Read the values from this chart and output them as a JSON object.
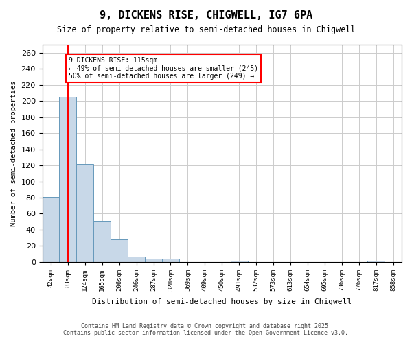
{
  "title": "9, DICKENS RISE, CHIGWELL, IG7 6PA",
  "subtitle": "Size of property relative to semi-detached houses in Chigwell",
  "xlabel": "Distribution of semi-detached houses by size in Chigwell",
  "ylabel": "Number of semi-detached properties",
  "categories": [
    "42sqm",
    "83sqm",
    "124sqm",
    "165sqm",
    "206sqm",
    "246sqm",
    "287sqm",
    "328sqm",
    "369sqm",
    "409sqm",
    "450sqm",
    "491sqm",
    "532sqm",
    "573sqm",
    "613sqm",
    "654sqm",
    "695sqm",
    "736sqm",
    "776sqm",
    "817sqm",
    "858sqm"
  ],
  "values": [
    81,
    205,
    122,
    51,
    28,
    7,
    4,
    4,
    0,
    0,
    0,
    2,
    0,
    0,
    0,
    0,
    0,
    0,
    0,
    2,
    0
  ],
  "bar_color": "#c8d8e8",
  "bar_edge_color": "#6699bb",
  "red_line_x": 1.0,
  "annotation_title": "9 DICKENS RISE: 115sqm",
  "annotation_line1": "← 49% of semi-detached houses are smaller (245)",
  "annotation_line2": "50% of semi-detached houses are larger (249) →",
  "ylim": [
    0,
    270
  ],
  "yticks": [
    0,
    20,
    40,
    60,
    80,
    100,
    120,
    140,
    160,
    180,
    200,
    220,
    240,
    260
  ],
  "footer1": "Contains HM Land Registry data © Crown copyright and database right 2025.",
  "footer2": "Contains public sector information licensed under the Open Government Licence v3.0.",
  "background_color": "#ffffff",
  "grid_color": "#cccccc"
}
